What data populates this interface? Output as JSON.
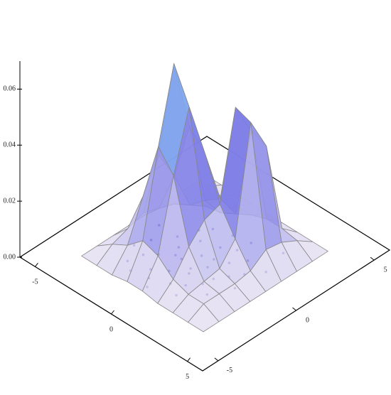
{
  "chart_data": {
    "type": "surface3d",
    "x": [
      -4,
      -3,
      -2,
      -1,
      0,
      1,
      2,
      3,
      4
    ],
    "y": [
      -4,
      -3,
      -2,
      -1,
      0,
      1,
      2,
      3,
      4
    ],
    "z": [
      [
        0,
        0,
        0,
        0.001,
        0.001,
        0,
        0,
        0,
        0
      ],
      [
        0,
        0.004,
        0.007,
        0.012,
        0.01,
        0.005,
        0.003,
        0.003,
        0
      ],
      [
        0,
        0.006,
        0.021,
        0.042,
        0.035,
        0.013,
        0.004,
        0.003,
        0
      ],
      [
        0,
        0.008,
        0.032,
        0.068,
        0.056,
        0.019,
        0.005,
        0.003,
        0
      ],
      [
        0,
        0.006,
        0.021,
        0.042,
        0.036,
        0.021,
        0.012,
        0.004,
        0
      ],
      [
        0,
        0.004,
        0.007,
        0.012,
        0.016,
        0.052,
        0.05,
        0.008,
        0
      ],
      [
        0,
        0.003,
        0.003,
        0.004,
        0.007,
        0.04,
        0.038,
        0.007,
        0
      ],
      [
        0,
        0.003,
        0.003,
        0.003,
        0.003,
        0.005,
        0.005,
        0.004,
        0
      ],
      [
        0,
        0,
        0,
        0,
        0,
        0,
        0,
        0,
        0
      ]
    ],
    "points": {
      "x": [
        -2.5,
        -2.0,
        -1.8,
        -1.5,
        -1.2,
        -1.0,
        -0.8,
        -0.5,
        -0.3,
        0.0,
        0.2,
        0.5,
        0.8,
        1.0,
        1.3,
        1.6,
        2.0,
        2.4,
        2.8,
        -2.2,
        -1.4,
        -0.6,
        0.4,
        1.2,
        2.2,
        -1.0,
        0.0,
        1.0,
        3.0,
        -3.0,
        -0.2,
        0.6,
        1.8,
        -1.6,
        0.9,
        2.6,
        -2.8,
        0.3,
        1.5,
        -0.9
      ],
      "y": [
        -1.0,
        -2.0,
        0.0,
        -1.5,
        -0.5,
        -2.5,
        0.5,
        -1.0,
        -2.0,
        -0.2,
        0.8,
        -1.5,
        -0.6,
        -2.2,
        0.3,
        -1.0,
        -0.4,
        0.2,
        -0.8,
        -2.8,
        1.0,
        -3.0,
        -2.6,
        -3.0,
        -2.0,
        1.5,
        1.8,
        2.0,
        1.0,
        0.0,
        -3.5,
        0.0,
        1.0,
        -3.2,
        1.2,
        2.5,
        -1.8,
        -1.2,
        -1.6,
        -1.0
      ]
    },
    "xlim": [
      -6,
      6
    ],
    "ylim": [
      -6,
      6
    ],
    "zlim": [
      0,
      0.07
    ],
    "xticks": [
      -5,
      0,
      5
    ],
    "yticks": [
      -5,
      0,
      5
    ],
    "zticks": [
      {
        "value": 0,
        "label": "0.00"
      },
      {
        "value": 0.02,
        "label": "0.02"
      },
      {
        "value": 0.04,
        "label": "0.04"
      },
      {
        "value": 0.06,
        "label": "0.06"
      }
    ],
    "point_color": "#3a3aa8"
  }
}
